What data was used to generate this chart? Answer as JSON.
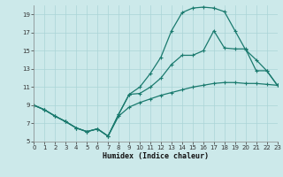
{
  "xlabel": "Humidex (Indice chaleur)",
  "bg_color": "#cce9ea",
  "line_color": "#1a7a6e",
  "grid_color": "#aad4d6",
  "xlim": [
    0,
    23
  ],
  "ylim": [
    5,
    20
  ],
  "xticks": [
    0,
    1,
    2,
    3,
    4,
    5,
    6,
    7,
    8,
    9,
    10,
    11,
    12,
    13,
    14,
    15,
    16,
    17,
    18,
    19,
    20,
    21,
    22,
    23
  ],
  "yticks": [
    5,
    7,
    9,
    11,
    13,
    15,
    17,
    19
  ],
  "line_bottom_x": [
    0,
    1,
    2,
    3,
    4,
    5,
    6,
    7,
    8,
    9,
    10,
    11,
    12,
    13,
    14,
    15,
    16,
    17,
    18,
    19,
    20,
    21,
    22,
    23
  ],
  "line_bottom_y": [
    9.0,
    8.5,
    7.8,
    7.2,
    6.5,
    6.1,
    6.4,
    5.6,
    7.8,
    8.8,
    9.3,
    9.7,
    10.1,
    10.4,
    10.7,
    11.0,
    11.2,
    11.4,
    11.5,
    11.5,
    11.4,
    11.4,
    11.3,
    11.2
  ],
  "line_top_x": [
    0,
    1,
    2,
    3,
    4,
    5,
    6,
    7,
    8,
    9,
    10,
    11,
    12,
    13,
    14,
    15,
    16,
    17,
    18,
    19,
    20,
    21,
    22,
    23
  ],
  "line_top_y": [
    9.0,
    8.5,
    7.8,
    7.2,
    6.5,
    6.1,
    6.4,
    5.6,
    8.0,
    10.2,
    11.0,
    12.5,
    14.3,
    17.2,
    19.2,
    19.7,
    19.8,
    19.7,
    19.3,
    17.2,
    15.1,
    14.0,
    12.8,
    11.2
  ],
  "line_mid_x": [
    0,
    1,
    2,
    3,
    4,
    5,
    6,
    7,
    8,
    9,
    10,
    11,
    12,
    13,
    14,
    15,
    16,
    17,
    18,
    19,
    20,
    21,
    22,
    23
  ],
  "line_mid_y": [
    9.0,
    8.5,
    7.8,
    7.2,
    6.5,
    6.1,
    6.4,
    5.6,
    8.0,
    10.2,
    10.3,
    11.0,
    12.0,
    13.5,
    14.5,
    14.5,
    15.0,
    17.2,
    15.3,
    15.2,
    15.2,
    12.8,
    12.8,
    11.2
  ]
}
